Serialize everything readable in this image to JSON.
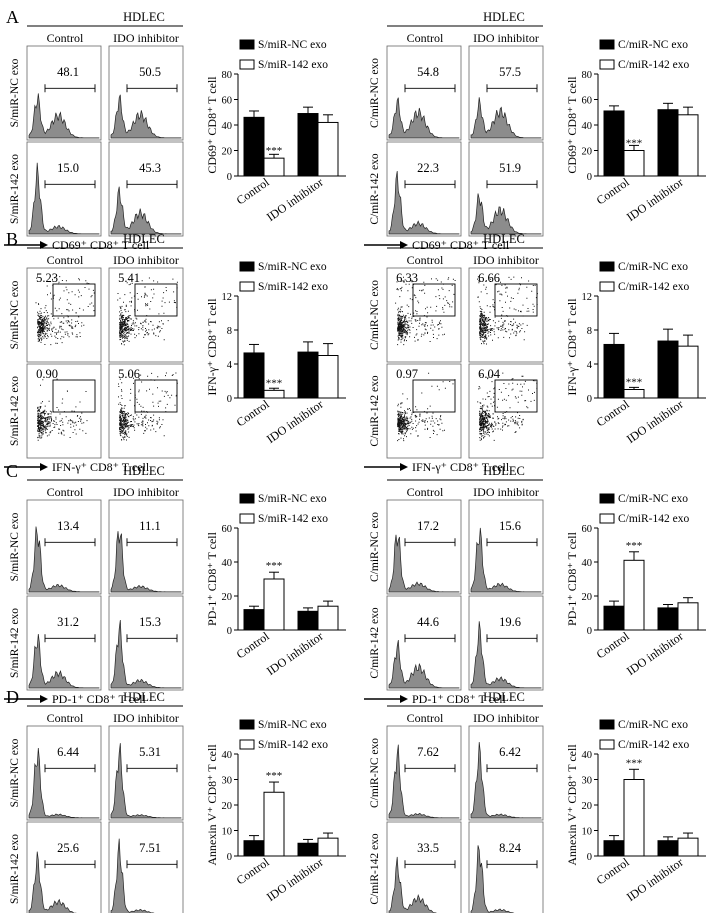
{
  "panel_labels": [
    "A",
    "B",
    "C",
    "D"
  ],
  "facs_common": {
    "header": "HDLEC",
    "col_labels": [
      "Control",
      "IDO inhibitor"
    ]
  },
  "chart_data": [
    {
      "panel": "A",
      "type": "bar",
      "categories": [
        "Control",
        "IDO inhibitor"
      ],
      "series": [
        {
          "name": "S/miR-NC exo",
          "values": [
            46,
            49
          ],
          "errors": [
            5,
            5
          ]
        },
        {
          "name": "S/miR-142 exo",
          "values": [
            14,
            42
          ],
          "errors": [
            3,
            6
          ]
        }
      ],
      "ylabel": "CD69⁺ CD8⁺ T cell",
      "ylim": [
        0,
        80
      ],
      "ticks": [
        "0",
        "20",
        "40",
        "60",
        "80"
      ],
      "significance": "***",
      "facs": {
        "plot": "histogram",
        "prefix": "S",
        "row_labels": [
          "S/miR-NC exo",
          "S/miR-142 exo"
        ],
        "values": [
          [
            "48.1",
            "50.5"
          ],
          [
            "15.0",
            "45.3"
          ]
        ],
        "xlabel": "CD69⁺ CD8⁺ T cell"
      }
    },
    {
      "panel": "A",
      "type": "bar",
      "categories": [
        "Control",
        "IDO inhibitor"
      ],
      "series": [
        {
          "name": "C/miR-NC exo",
          "values": [
            51,
            52
          ],
          "errors": [
            4,
            5
          ]
        },
        {
          "name": "C/miR-142 exo",
          "values": [
            20,
            48
          ],
          "errors": [
            4,
            6
          ]
        }
      ],
      "ylabel": "CD69⁺ CD8⁺ T cell",
      "ylim": [
        0,
        80
      ],
      "ticks": [
        "0",
        "20",
        "40",
        "60",
        "80"
      ],
      "significance": "***",
      "facs": {
        "plot": "histogram",
        "prefix": "C",
        "row_labels": [
          "C/miR-NC exo",
          "C/miR-142 exo"
        ],
        "values": [
          [
            "54.8",
            "57.5"
          ],
          [
            "22.3",
            "51.9"
          ]
        ],
        "xlabel": "CD69⁺ CD8⁺ T cell"
      }
    },
    {
      "panel": "B",
      "type": "bar",
      "categories": [
        "Control",
        "IDO inhibitor"
      ],
      "series": [
        {
          "name": "S/miR-NC exo",
          "values": [
            5.3,
            5.4
          ],
          "errors": [
            1.0,
            1.2
          ]
        },
        {
          "name": "S/miR-142 exo",
          "values": [
            0.9,
            5.0
          ],
          "errors": [
            0.25,
            1.4
          ]
        }
      ],
      "ylabel": "IFN-γ⁺ CD8⁺ T cell",
      "ylim": [
        0,
        12
      ],
      "ticks": [
        "0",
        "4",
        "8",
        "12"
      ],
      "significance": "***",
      "facs": {
        "plot": "dot",
        "prefix": "S",
        "row_labels": [
          "S/miR-NC exo",
          "S/miR-142 exo"
        ],
        "values": [
          [
            "5.23",
            "5.41"
          ],
          [
            "0.90",
            "5.06"
          ]
        ],
        "xlabel": "IFN-γ⁺ CD8⁺ T cell"
      }
    },
    {
      "panel": "B",
      "type": "bar",
      "categories": [
        "Control",
        "IDO inhibitor"
      ],
      "series": [
        {
          "name": "C/miR-NC exo",
          "values": [
            6.3,
            6.7
          ],
          "errors": [
            1.3,
            1.4
          ]
        },
        {
          "name": "C/miR-142 exo",
          "values": [
            1.0,
            6.1
          ],
          "errors": [
            0.25,
            1.3
          ]
        }
      ],
      "ylabel": "IFN-γ⁺ CD8⁺ T cell",
      "ylim": [
        0,
        12
      ],
      "ticks": [
        "0",
        "4",
        "8",
        "12"
      ],
      "significance": "***",
      "facs": {
        "plot": "dot",
        "prefix": "C",
        "row_labels": [
          "C/miR-NC exo",
          "C/miR-142 exo"
        ],
        "values": [
          [
            "6.33",
            "6.66"
          ],
          [
            "0.97",
            "6.04"
          ]
        ],
        "xlabel": "IFN-γ⁺ CD8⁺ T cell"
      }
    },
    {
      "panel": "C",
      "type": "bar",
      "categories": [
        "Control",
        "IDO inhibitor"
      ],
      "series": [
        {
          "name": "S/miR-NC exo",
          "values": [
            12,
            11
          ],
          "errors": [
            2,
            2
          ]
        },
        {
          "name": "S/miR-142 exo",
          "values": [
            30,
            14
          ],
          "errors": [
            4,
            3
          ]
        }
      ],
      "ylabel": "PD-1⁺ CD8⁺ T cell",
      "ylim": [
        0,
        60
      ],
      "ticks": [
        "0",
        "20",
        "40",
        "60"
      ],
      "significance": "***",
      "facs": {
        "plot": "histogram",
        "prefix": "S",
        "row_labels": [
          "S/miR-NC exo",
          "S/miR-142 exo"
        ],
        "values": [
          [
            "13.4",
            "11.1"
          ],
          [
            "31.2",
            "15.3"
          ]
        ],
        "xlabel": "PD-1⁺ CD8⁺ T cell"
      }
    },
    {
      "panel": "C",
      "type": "bar",
      "categories": [
        "Control",
        "IDO inhibitor"
      ],
      "series": [
        {
          "name": "C/miR-NC exo",
          "values": [
            14,
            13
          ],
          "errors": [
            3,
            2
          ]
        },
        {
          "name": "C/miR-142 exo",
          "values": [
            41,
            16
          ],
          "errors": [
            5,
            3
          ]
        }
      ],
      "ylabel": "PD-1⁺ CD8⁺ T cell",
      "ylim": [
        0,
        60
      ],
      "ticks": [
        "0",
        "20",
        "40",
        "60"
      ],
      "significance": "***",
      "facs": {
        "plot": "histogram",
        "prefix": "C",
        "row_labels": [
          "C/miR-NC exo",
          "C/miR-142 exo"
        ],
        "values": [
          [
            "17.2",
            "15.6"
          ],
          [
            "44.6",
            "19.6"
          ]
        ],
        "xlabel": "PD-1⁺ CD8⁺ T cell"
      }
    },
    {
      "panel": "D",
      "type": "bar",
      "categories": [
        "Control",
        "IDO inhibitor"
      ],
      "series": [
        {
          "name": "S/miR-NC exo",
          "values": [
            6,
            5
          ],
          "errors": [
            2,
            1.5
          ]
        },
        {
          "name": "S/miR-142 exo",
          "values": [
            25,
            7
          ],
          "errors": [
            4,
            2
          ]
        }
      ],
      "ylabel": "Annexin V⁺ CD8⁺ T cell",
      "ylim": [
        0,
        40
      ],
      "ticks": [
        "0",
        "10",
        "20",
        "30",
        "40"
      ],
      "significance": "***",
      "facs": {
        "plot": "histogram",
        "prefix": "S",
        "row_labels": [
          "S/miR-NC exo",
          "S/miR-142 exo"
        ],
        "values": [
          [
            "6.44",
            "5.31"
          ],
          [
            "25.6",
            "7.51"
          ]
        ],
        "xlabel": "Annexin V⁺ CD8⁺ T cell"
      }
    },
    {
      "panel": "D",
      "type": "bar",
      "categories": [
        "Control",
        "IDO inhibitor"
      ],
      "series": [
        {
          "name": "C/miR-NC exo",
          "values": [
            6,
            6
          ],
          "errors": [
            2,
            1.5
          ]
        },
        {
          "name": "C/miR-142 exo",
          "values": [
            30,
            7
          ],
          "errors": [
            4,
            2
          ]
        }
      ],
      "ylabel": "Annexin V⁺ CD8⁺ T cell",
      "ylim": [
        0,
        40
      ],
      "ticks": [
        "0",
        "10",
        "20",
        "30",
        "40"
      ],
      "significance": "***",
      "facs": {
        "plot": "histogram",
        "prefix": "C",
        "row_labels": [
          "C/miR-NC exo",
          "C/miR-142 exo"
        ],
        "values": [
          [
            "7.62",
            "6.42"
          ],
          [
            "33.5",
            "8.24"
          ]
        ],
        "xlabel": "Annexin V⁺ CD8⁺ T cell"
      }
    }
  ]
}
